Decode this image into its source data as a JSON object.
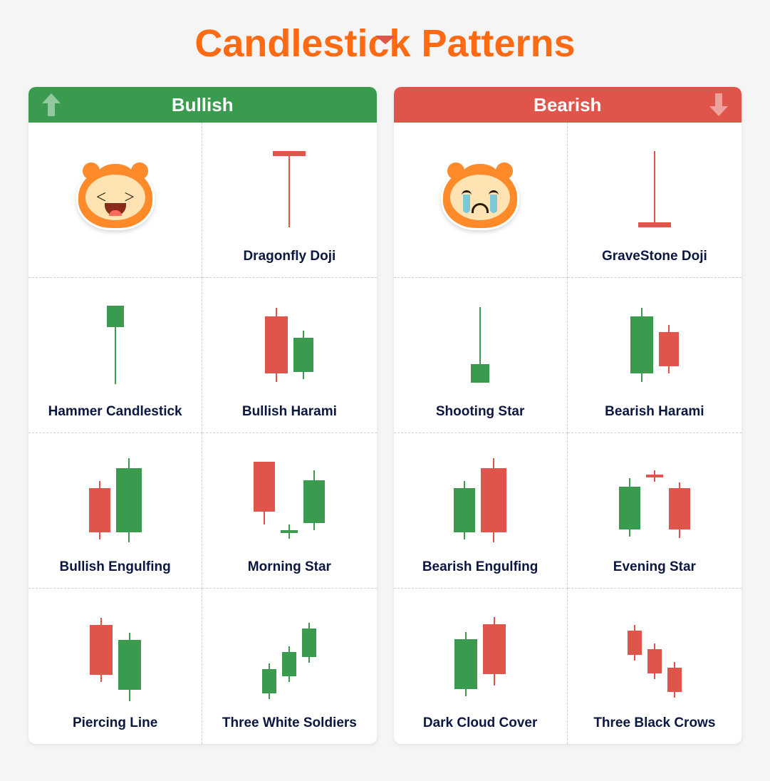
{
  "colors": {
    "title": "#ff6a13",
    "label": "#0a1740",
    "green": "#3a9b4f",
    "green_light": "#6fc97f",
    "red": "#e0554b",
    "red_light": "#f28e86",
    "mascot_orange": "#ff8a2a",
    "mascot_face": "#ffe3b3",
    "tear": "#7cc8d6",
    "bg": "#f5f5f5",
    "panel_bg": "#ffffff",
    "divider": "#d0d0d0"
  },
  "title": "Candlestick  Patterns",
  "panels": [
    {
      "key": "bullish",
      "label": "Bullish",
      "header_color": "#3a9b4f",
      "arrow_dir": "up",
      "arrow_side": "left",
      "mascot": "happy",
      "cells": [
        {
          "type": "mascot"
        },
        {
          "label": "Dragonfly Doji",
          "candles": [
            {
              "color": "red",
              "uw": 0,
              "body": 3,
              "lw": 100,
              "bw": 46,
              "cap_top": true
            }
          ]
        },
        {
          "label": "Hammer Candlestick",
          "candles": [
            {
              "color": "green",
              "uw": 0,
              "body": 30,
              "lw": 80,
              "bw": 24
            }
          ]
        },
        {
          "label": "Bullish Harami",
          "candles": [
            {
              "color": "red",
              "uw": 12,
              "body": 80,
              "lw": 12,
              "bw": 32
            },
            {
              "color": "green",
              "uw": 10,
              "body": 48,
              "lw": 10,
              "bw": 28,
              "offsetY": 14
            }
          ]
        },
        {
          "label": "Bullish Engulfing",
          "candles": [
            {
              "color": "red",
              "uw": 10,
              "body": 62,
              "lw": 10,
              "bw": 30,
              "offsetY": 14
            },
            {
              "color": "green",
              "uw": 14,
              "body": 90,
              "lw": 14,
              "bw": 36
            }
          ]
        },
        {
          "label": "Morning Star",
          "candles": [
            {
              "color": "red",
              "uw": 0,
              "body": 70,
              "lw": 18,
              "bw": 30,
              "offsetY": -10
            },
            {
              "color": "green",
              "uw": 8,
              "body": 4,
              "lw": 8,
              "bw": 24,
              "offsetY": 44
            },
            {
              "color": "green",
              "uw": 14,
              "body": 60,
              "lw": 10,
              "bw": 30,
              "offsetY": 0
            }
          ]
        },
        {
          "label": "Piercing Line",
          "candles": [
            {
              "color": "red",
              "uw": 10,
              "body": 70,
              "lw": 10,
              "bw": 32,
              "offsetY": -8
            },
            {
              "color": "green",
              "uw": 10,
              "body": 70,
              "lw": 16,
              "bw": 32,
              "offsetY": 16
            }
          ]
        },
        {
          "label": "Three White Soldiers",
          "candles": [
            {
              "color": "green",
              "uw": 8,
              "body": 34,
              "lw": 8,
              "bw": 20,
              "offsetY": 36
            },
            {
              "color": "green",
              "uw": 8,
              "body": 34,
              "lw": 8,
              "bw": 20,
              "offsetY": 12
            },
            {
              "color": "green",
              "uw": 8,
              "body": 40,
              "lw": 8,
              "bw": 20,
              "offsetY": -18
            }
          ]
        }
      ]
    },
    {
      "key": "bearish",
      "label": "Bearish",
      "header_color": "#e0554b",
      "arrow_dir": "down",
      "arrow_side": "right",
      "mascot": "sad",
      "cells": [
        {
          "type": "mascot"
        },
        {
          "label": "GraveStone Doji",
          "candles": [
            {
              "color": "red",
              "uw": 100,
              "body": 3,
              "lw": 0,
              "bw": 46,
              "cap_bottom": true
            }
          ]
        },
        {
          "label": "Shooting Star",
          "candles": [
            {
              "color": "green",
              "uw": 80,
              "body": 26,
              "lw": 0,
              "bw": 26
            }
          ]
        },
        {
          "label": "Bearish Harami",
          "candles": [
            {
              "color": "green",
              "uw": 12,
              "body": 80,
              "lw": 12,
              "bw": 32
            },
            {
              "color": "red",
              "uw": 10,
              "body": 48,
              "lw": 10,
              "bw": 28,
              "offsetY": 6
            }
          ]
        },
        {
          "label": "Bearish Engulfing",
          "candles": [
            {
              "color": "green",
              "uw": 10,
              "body": 62,
              "lw": 10,
              "bw": 30,
              "offsetY": 14
            },
            {
              "color": "red",
              "uw": 14,
              "body": 90,
              "lw": 14,
              "bw": 36
            }
          ]
        },
        {
          "label": "Evening Star",
          "candles": [
            {
              "color": "green",
              "uw": 12,
              "body": 60,
              "lw": 10,
              "bw": 30,
              "offsetY": 10
            },
            {
              "color": "red",
              "uw": 6,
              "body": 4,
              "lw": 6,
              "bw": 24,
              "offsetY": -34
            },
            {
              "color": "red",
              "uw": 8,
              "body": 58,
              "lw": 12,
              "bw": 30,
              "offsetY": 14
            }
          ]
        },
        {
          "label": "Dark Cloud Cover",
          "candles": [
            {
              "color": "green",
              "uw": 10,
              "body": 70,
              "lw": 10,
              "bw": 32,
              "offsetY": 12
            },
            {
              "color": "red",
              "uw": 10,
              "body": 70,
              "lw": 16,
              "bw": 32,
              "offsetY": -6
            }
          ]
        },
        {
          "label": "Three Black Crows",
          "candles": [
            {
              "color": "red",
              "uw": 8,
              "body": 34,
              "lw": 8,
              "bw": 20,
              "offsetY": -18
            },
            {
              "color": "red",
              "uw": 8,
              "body": 34,
              "lw": 8,
              "bw": 20,
              "offsetY": 8
            },
            {
              "color": "red",
              "uw": 8,
              "body": 34,
              "lw": 8,
              "bw": 20,
              "offsetY": 34
            }
          ]
        }
      ]
    }
  ]
}
